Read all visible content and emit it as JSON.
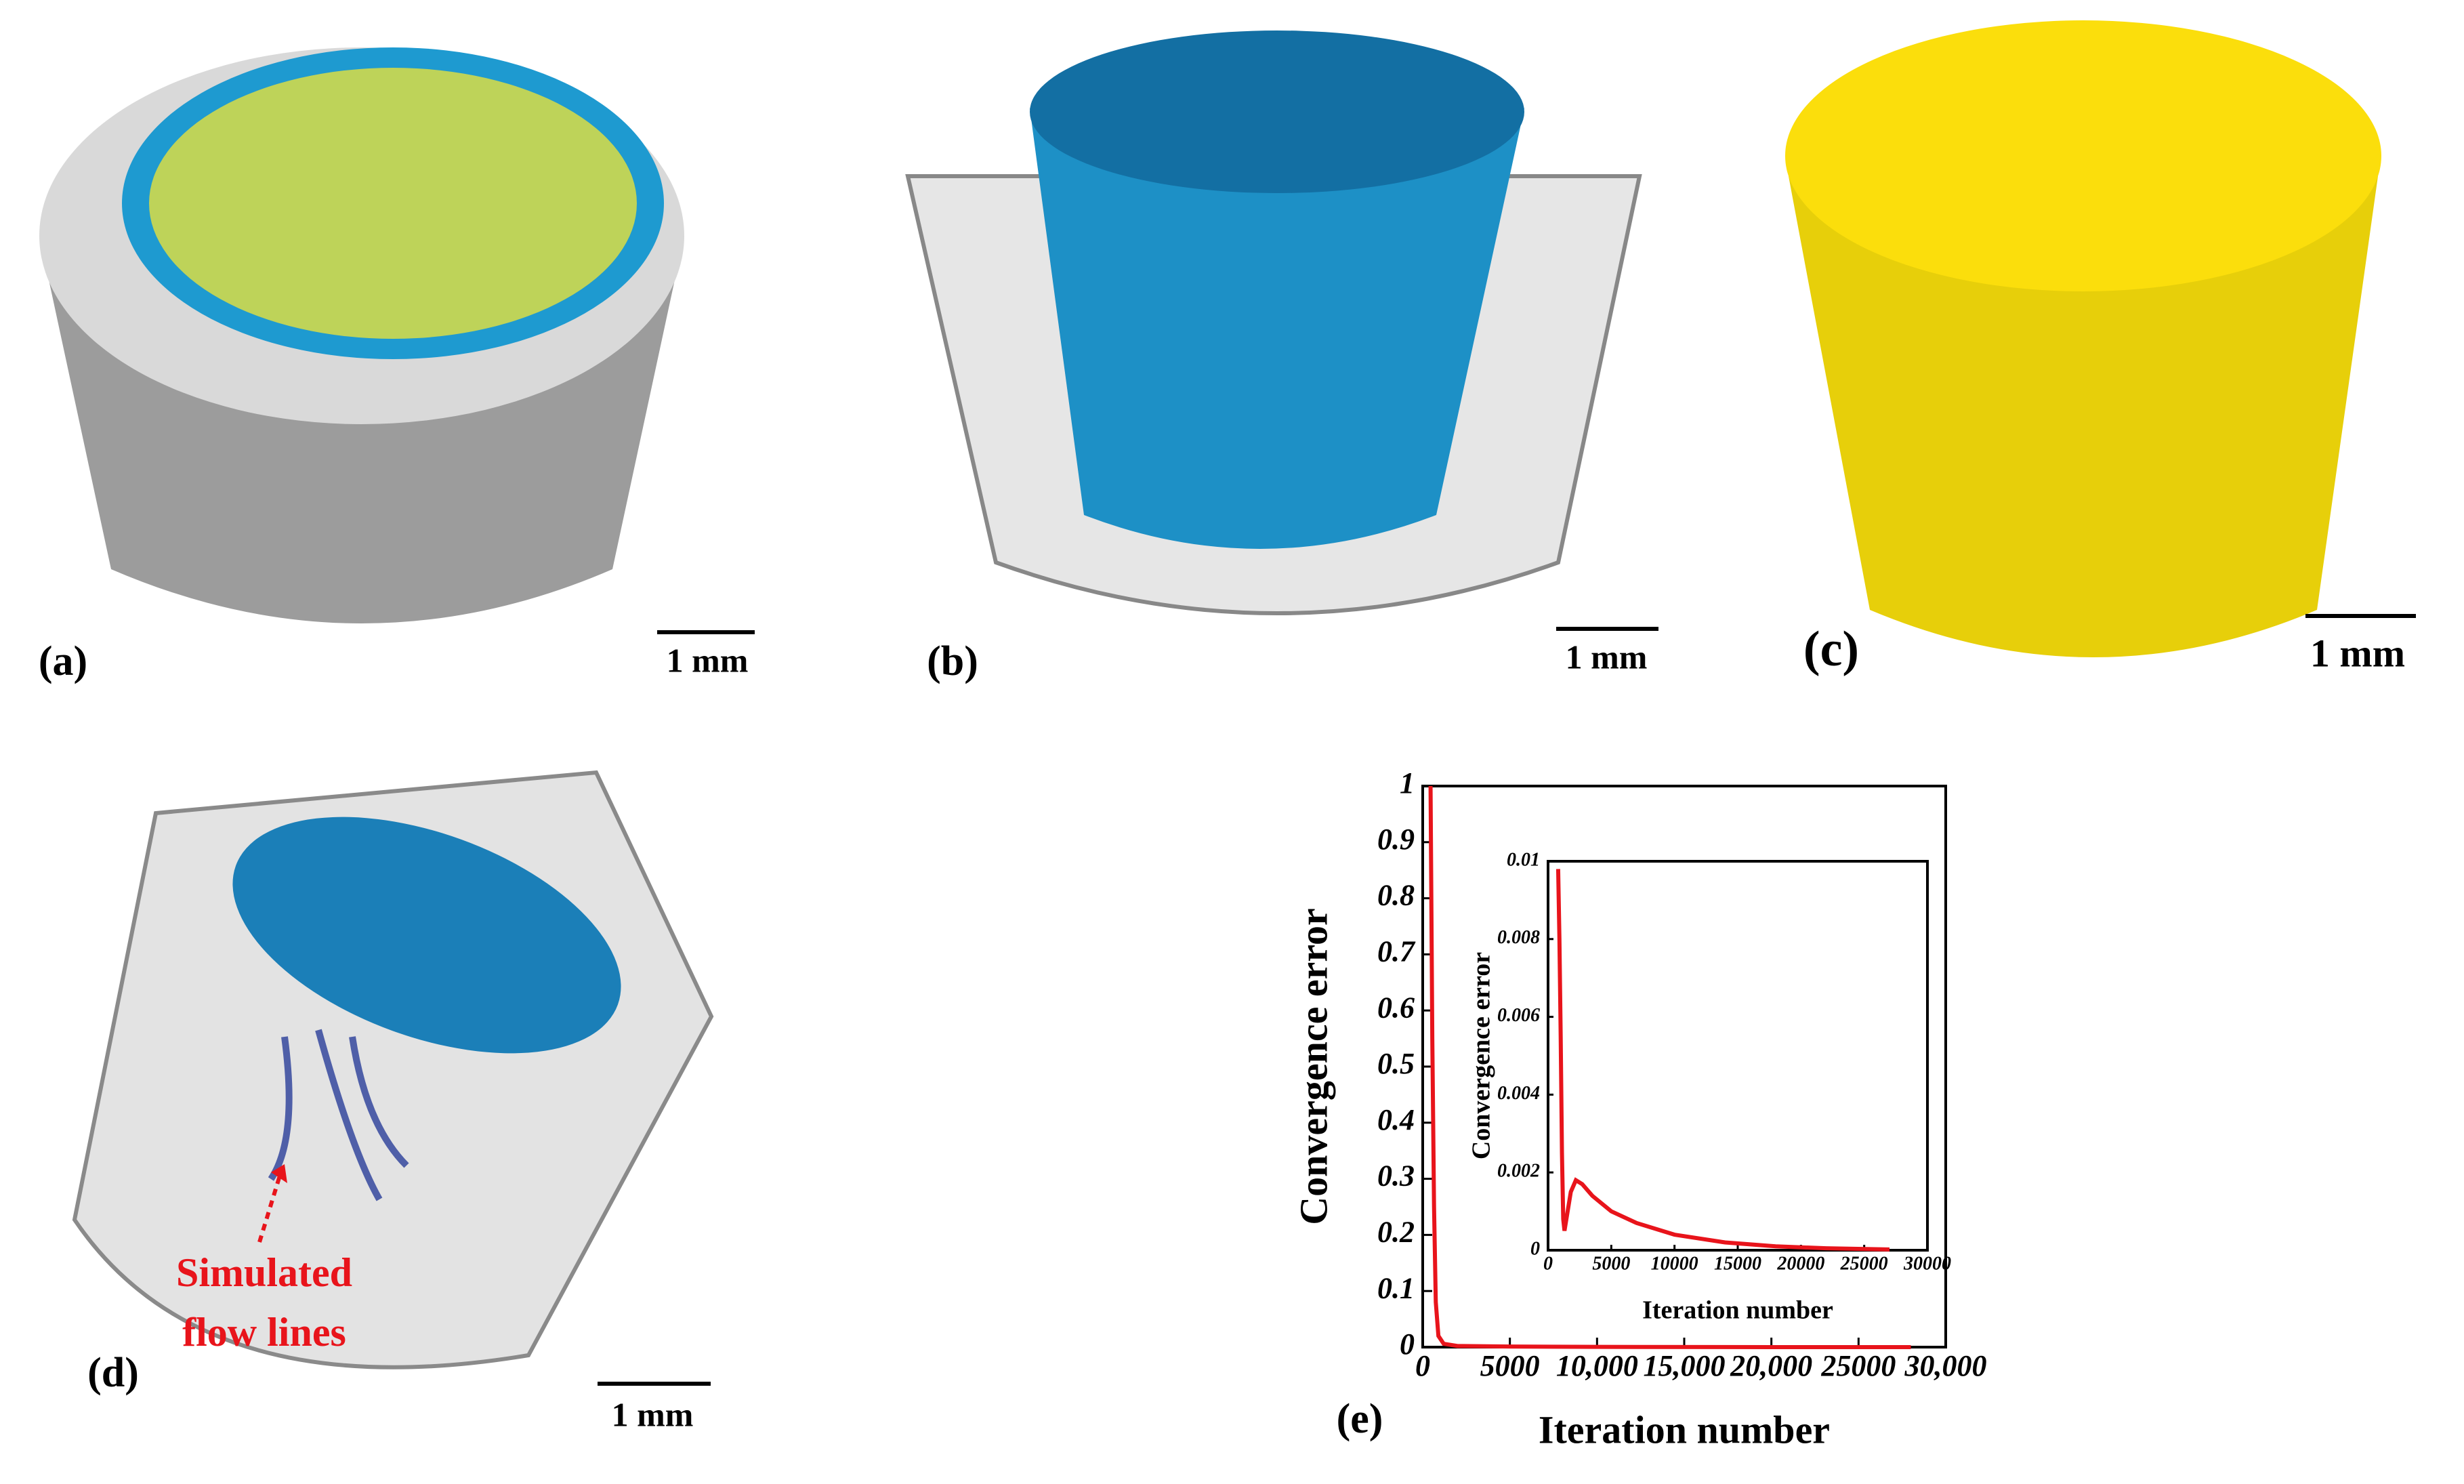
{
  "panels": [
    {
      "label": "(a)",
      "scale": "1 mm"
    },
    {
      "label": "(b)",
      "scale": "1 mm"
    },
    {
      "label": "(c)",
      "scale": "1 mm"
    },
    {
      "label": "(d)",
      "scale": "1 mm"
    },
    {
      "label": "(e)"
    }
  ],
  "annotation": [
    "Simulated",
    "flow lines"
  ],
  "chart_data": [
    {
      "type": "line",
      "xlabel": "Iteration number",
      "ylabel": "Convergence error",
      "xlim": [
        0,
        30000
      ],
      "ylim": [
        0,
        1
      ],
      "xticks": [
        0,
        5000,
        {
          "value": 10000,
          "label": "10,000"
        },
        {
          "value": 15000,
          "label": "15,000"
        },
        {
          "value": 20000,
          "label": "20,000"
        },
        25000,
        {
          "value": 30000,
          "label": "30,000"
        }
      ],
      "yticks": [
        0,
        0.1,
        0.2,
        0.3,
        0.4,
        0.5,
        0.6,
        0.7,
        0.8,
        0.9,
        1
      ],
      "series": [
        {
          "color": "#e8141b",
          "x": [
            450,
            550,
            650,
            750,
            900,
            1200,
            2000,
            5000,
            10000,
            20000,
            28000
          ],
          "values": [
            1,
            0.55,
            0.25,
            0.08,
            0.02,
            0.006,
            0.002,
            0.001,
            0.0004,
            5e-05,
            2e-05
          ]
        }
      ]
    },
    {
      "type": "line",
      "xlabel": "Iteration number",
      "ylabel": "Convergence error",
      "xlim": [
        0,
        30000
      ],
      "ylim": [
        0,
        0.01
      ],
      "xticks": [
        0,
        5000,
        10000,
        15000,
        20000,
        25000,
        30000
      ],
      "yticks": [
        0,
        0.002,
        0.004,
        0.006,
        0.008,
        0.01
      ],
      "series": [
        {
          "color": "#e8141b",
          "x": [
            800,
            900,
            1000,
            1100,
            1200,
            1300,
            1500,
            1800,
            2200,
            2700,
            3500,
            5000,
            7000,
            10000,
            14000,
            18000,
            22000,
            27000
          ],
          "values": [
            0.0098,
            0.008,
            0.0055,
            0.0025,
            0.0008,
            0.0005,
            0.0009,
            0.0015,
            0.0018,
            0.0017,
            0.0014,
            0.001,
            0.0007,
            0.0004,
            0.0002,
            0.0001,
            5e-05,
            2e-05
          ]
        }
      ]
    }
  ]
}
